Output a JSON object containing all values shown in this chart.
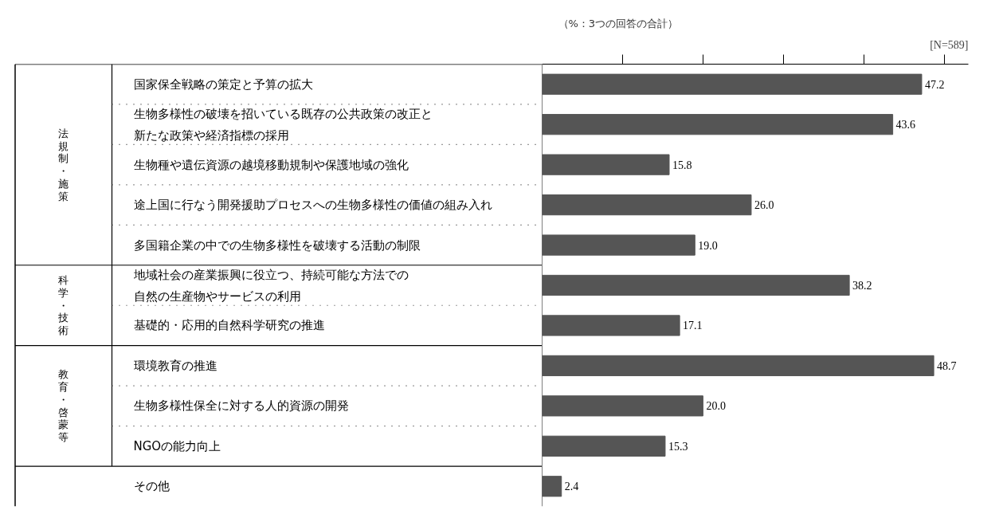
{
  "chart_data": {
    "type": "bar",
    "orientation": "horizontal",
    "categories": [
      "国家保全戦略の策定と予算の拡大",
      "生物多様性の破壊を招いている既存の公共政策の改正と新たな政策や経済指標の採用",
      "生物種や遺伝資源の越境移動規制や保護地域の強化",
      "途上国に行なう開発援助プロセスへの生物多様性の価値の組み入れ",
      "多国籍企業の中での生物多様性を破壊する活動の制限",
      "地域社会の産業振興に役立つ、持続可能な方法での自然の生産物やサービスの利用",
      "基礎的・応用的自然科学研究の推進",
      "環境教育の推進",
      "生物多様性保全に対する人的資源の開発",
      "NGOの能力向上",
      "その他"
    ],
    "values": [
      47.2,
      43.6,
      15.8,
      26.0,
      19.0,
      38.2,
      17.1,
      48.7,
      20.0,
      15.3,
      2.4
    ],
    "value_labels": [
      "47.2",
      "43.6",
      "15.8",
      "26.0",
      "19.0",
      "38.2",
      "17.1",
      "48.7",
      "20.0",
      "15.3",
      "2.4"
    ],
    "color": "#555555",
    "xlim": [
      0,
      53
    ],
    "xticks": [
      {
        "value": 10,
        "label": null
      },
      {
        "value": 20,
        "label": null
      },
      {
        "value": 30,
        "label": null
      },
      {
        "value": 40,
        "label": null
      },
      {
        "value": 50,
        "label": null
      }
    ],
    "grid": false,
    "annotations": [
      "（%：3つの回答の合計）",
      "[N=589]",
      "法規制・施策",
      "科学・技術",
      "教育・啓蒙等"
    ]
  }
}
